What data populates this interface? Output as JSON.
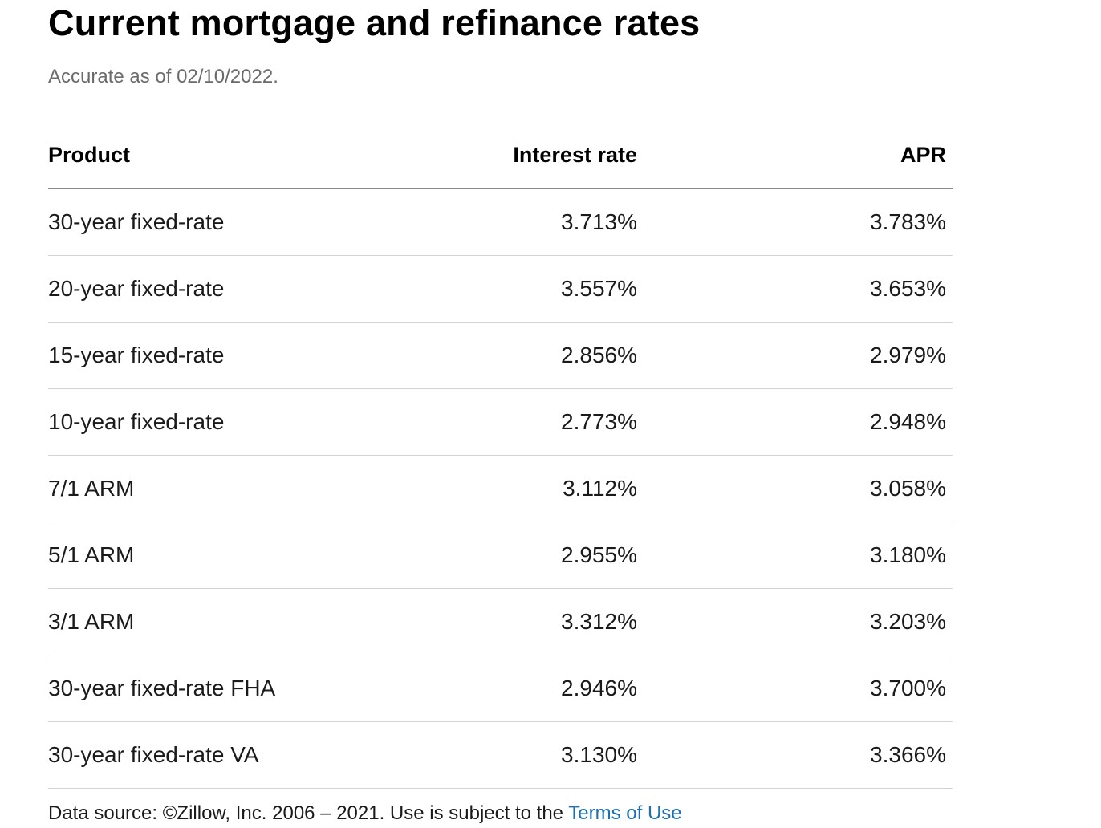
{
  "title": "Current mortgage and refinance rates",
  "subtitle": "Accurate as of 02/10/2022.",
  "table": {
    "headers": [
      "Product",
      "Interest rate",
      "APR"
    ],
    "rows": [
      [
        "30-year fixed-rate",
        "3.713%",
        "3.783%"
      ],
      [
        "20-year fixed-rate",
        "3.557%",
        "3.653%"
      ],
      [
        "15-year fixed-rate",
        "2.856%",
        "2.979%"
      ],
      [
        "10-year fixed-rate",
        "2.773%",
        "2.948%"
      ],
      [
        "7/1 ARM",
        "3.112%",
        "3.058%"
      ],
      [
        "5/1 ARM",
        "2.955%",
        "3.180%"
      ],
      [
        "3/1 ARM",
        "3.312%",
        "3.203%"
      ],
      [
        "30-year fixed-rate FHA",
        "2.946%",
        "3.700%"
      ],
      [
        "30-year fixed-rate VA",
        "3.130%",
        "3.366%"
      ]
    ]
  },
  "footer": {
    "text": "Data source: ©Zillow, Inc. 2006 – 2021. Use is subject to the ",
    "link_label": "Terms of Use"
  },
  "colors": {
    "link": "#1f6fb2",
    "subtitle": "#6b6b6b",
    "header_rule": "#8a8a8a",
    "row_rule": "#d3d3d3"
  }
}
